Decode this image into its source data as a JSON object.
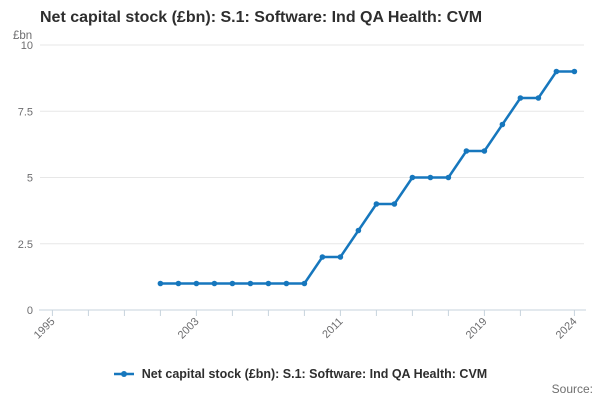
{
  "title": "Net capital stock (£bn): S.1: Software: Ind QA Health: CVM",
  "legend": {
    "label": "Net capital stock (£bn): S.1: Software: Ind QA Health: CVM"
  },
  "source_label": "Source:",
  "colors": {
    "line": "#1677bd",
    "grid": "#e7e7e7",
    "axis": "#c7d3dc",
    "muted_text": "#6d6d6f",
    "dark_text": "#2e2e2e"
  },
  "chart_data": {
    "type": "line",
    "title": "Net capital stock (£bn): S.1: Software: Ind QA Health: CVM",
    "ylabel": "£bn",
    "xlabel": "",
    "ylim": [
      0,
      10
    ],
    "grid": "horizontal",
    "legend_position": "bottom",
    "marker": "circle",
    "series_name": "Net capital stock (£bn): S.1: Software: Ind QA Health: CVM",
    "yticks": [
      {
        "value": 0,
        "label": "0"
      },
      {
        "value": 2.5,
        "label": "2.5"
      },
      {
        "value": 5,
        "label": "5"
      },
      {
        "value": 7.5,
        "label": "7.5"
      },
      {
        "value": 10,
        "label": "10"
      }
    ],
    "x_axis_ticks": [
      1995,
      1997,
      1999,
      2001,
      2003,
      2005,
      2007,
      2009,
      2011,
      2013,
      2015,
      2017,
      2019,
      2021,
      2024
    ],
    "x_axis_labels": [
      "1995",
      "2003",
      "2011",
      "2019",
      "2024"
    ],
    "x": [
      2001,
      2002,
      2003,
      2004,
      2005,
      2006,
      2007,
      2008,
      2009,
      2010,
      2011,
      2012,
      2013,
      2014,
      2015,
      2016,
      2017,
      2018,
      2019,
      2020,
      2021,
      2022,
      2023,
      2024
    ],
    "values": [
      1,
      1,
      1,
      1,
      1,
      1,
      1,
      1,
      1,
      2,
      2,
      3,
      4,
      4,
      5,
      5,
      5,
      6,
      6,
      7,
      8,
      8,
      9,
      9
    ]
  }
}
